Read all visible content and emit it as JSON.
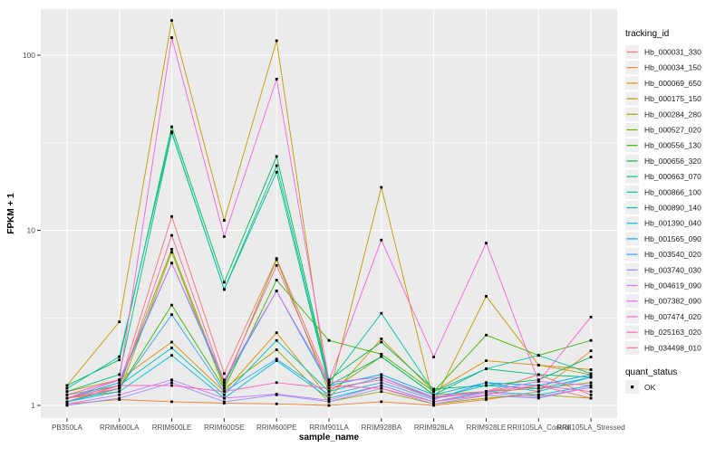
{
  "chart_data": {
    "type": "line",
    "title": "",
    "xlabel": "sample_name",
    "ylabel": "FPKM + 1",
    "y_scale": "log10",
    "y_ticks": [
      1,
      10,
      100
    ],
    "y_minor_ticks": [
      3.1623,
      31.623
    ],
    "ylim": [
      1,
      200
    ],
    "grid": true,
    "panel_bg": "#EBEBEB",
    "grid_color": "#FFFFFF",
    "tick_label_color": "#4D4D4D",
    "axis_title_color": "#000000",
    "point_color": "#000000",
    "legend_position": "right",
    "categories": [
      "PB350LA",
      "RRIM600LA",
      "RRIM600LE",
      "RRIM600SE",
      "RRIM600PE",
      "RRIM901LA",
      "RRIM928BA",
      "RRIM928LA",
      "RRIM928LE",
      "RRII105LA_Control",
      "RRII105LA_Stressed"
    ],
    "series": [
      {
        "name": "Hb_000031_330",
        "color": "#F8766D",
        "values": [
          1.05,
          1.3,
          12.0,
          1.52,
          6.9,
          1.35,
          1.45,
          1.1,
          1.2,
          1.5,
          1.15
        ]
      },
      {
        "name": "Hb_000034_150",
        "color": "#EA8331",
        "values": [
          1.02,
          1.08,
          1.05,
          1.03,
          1.02,
          1.0,
          1.05,
          1.0,
          1.08,
          1.2,
          2.05
        ]
      },
      {
        "name": "Hb_000069_650",
        "color": "#D89000",
        "values": [
          1.2,
          1.4,
          2.3,
          1.2,
          2.6,
          1.1,
          2.4,
          1.2,
          1.8,
          1.7,
          1.6
        ]
      },
      {
        "name": "Hb_000175_150",
        "color": "#C09B00",
        "values": [
          1.3,
          3.0,
          158.0,
          11.4,
          121.0,
          1.15,
          17.6,
          1.05,
          4.2,
          1.7,
          1.5
        ]
      },
      {
        "name": "Hb_000284_280",
        "color": "#A3A500",
        "values": [
          1.1,
          1.2,
          7.5,
          1.25,
          2.08,
          1.05,
          1.2,
          1.02,
          1.1,
          1.15,
          1.1
        ]
      },
      {
        "name": "Hb_000527_020",
        "color": "#7CAE00",
        "values": [
          1.15,
          1.3,
          7.8,
          1.3,
          6.8,
          1.2,
          1.9,
          1.15,
          1.2,
          1.25,
          1.35
        ]
      },
      {
        "name": "Hb_000556_130",
        "color": "#39B600",
        "values": [
          1.05,
          1.25,
          3.74,
          1.25,
          5.2,
          2.35,
          1.96,
          1.2,
          2.52,
          1.93,
          2.35
        ]
      },
      {
        "name": "Hb_000656_320",
        "color": "#00BB4E",
        "values": [
          1.3,
          1.82,
          39.0,
          5.05,
          26.4,
          1.4,
          2.3,
          1.24,
          1.3,
          1.4,
          1.89
        ]
      },
      {
        "name": "Hb_000663_070",
        "color": "#00BF7D",
        "values": [
          1.2,
          1.5,
          36.0,
          4.6,
          21.5,
          1.3,
          1.9,
          1.15,
          1.62,
          1.5,
          1.45
        ]
      },
      {
        "name": "Hb_000866_100",
        "color": "#00C1A3",
        "values": [
          1.25,
          1.9,
          36.5,
          4.6,
          23.4,
          1.35,
          3.36,
          1.2,
          1.62,
          1.93,
          1.52
        ]
      },
      {
        "name": "Hb_000890_140",
        "color": "#00BFC4",
        "values": [
          1.1,
          1.3,
          2.13,
          1.15,
          2.35,
          1.2,
          1.45,
          1.1,
          1.3,
          1.25,
          1.45
        ]
      },
      {
        "name": "Hb_001390_040",
        "color": "#00BAE0",
        "values": [
          1.05,
          1.2,
          1.93,
          1.1,
          1.8,
          1.1,
          1.3,
          1.05,
          1.2,
          1.15,
          1.3
        ]
      },
      {
        "name": "Hb_001565_090",
        "color": "#00B0F6",
        "values": [
          1.1,
          1.35,
          6.5,
          1.35,
          4.5,
          1.3,
          1.5,
          1.15,
          1.35,
          1.3,
          1.5
        ]
      },
      {
        "name": "Hb_003540_020",
        "color": "#35A2FF",
        "values": [
          1.05,
          1.25,
          3.3,
          1.2,
          1.84,
          1.15,
          1.35,
          1.08,
          1.35,
          1.2,
          1.45
        ]
      },
      {
        "name": "Hb_003740_030",
        "color": "#9590FF",
        "values": [
          1.0,
          1.1,
          1.35,
          1.05,
          1.15,
          1.05,
          1.25,
          1.02,
          1.14,
          1.1,
          1.27
        ]
      },
      {
        "name": "Hb_004619_090",
        "color": "#C77CFF",
        "values": [
          1.02,
          1.15,
          1.4,
          1.1,
          1.16,
          1.07,
          1.3,
          1.05,
          1.18,
          1.12,
          1.27
        ]
      },
      {
        "name": "Hb_007382_090",
        "color": "#E76BF3",
        "values": [
          1.1,
          1.4,
          6.5,
          1.4,
          4.5,
          1.35,
          1.45,
          1.12,
          1.2,
          1.37,
          1.3
        ]
      },
      {
        "name": "Hb_007474_020",
        "color": "#FA62DB",
        "values": [
          1.15,
          1.4,
          126.0,
          9.2,
          73.0,
          1.38,
          8.8,
          1.89,
          8.46,
          1.37,
          3.2
        ]
      },
      {
        "name": "Hb_025163_020",
        "color": "#FF62BC",
        "values": [
          1.1,
          1.3,
          1.3,
          1.2,
          1.35,
          1.25,
          1.4,
          1.1,
          1.2,
          1.3,
          1.2
        ]
      },
      {
        "name": "Hb_034498_010",
        "color": "#FF6A98",
        "values": [
          1.1,
          1.25,
          9.35,
          1.35,
          6.3,
          1.3,
          1.25,
          1.05,
          1.15,
          1.3,
          1.1
        ]
      }
    ],
    "legend": {
      "tracking_title": "tracking_id",
      "quant_title": "quant_status",
      "quant_label": "OK"
    }
  }
}
